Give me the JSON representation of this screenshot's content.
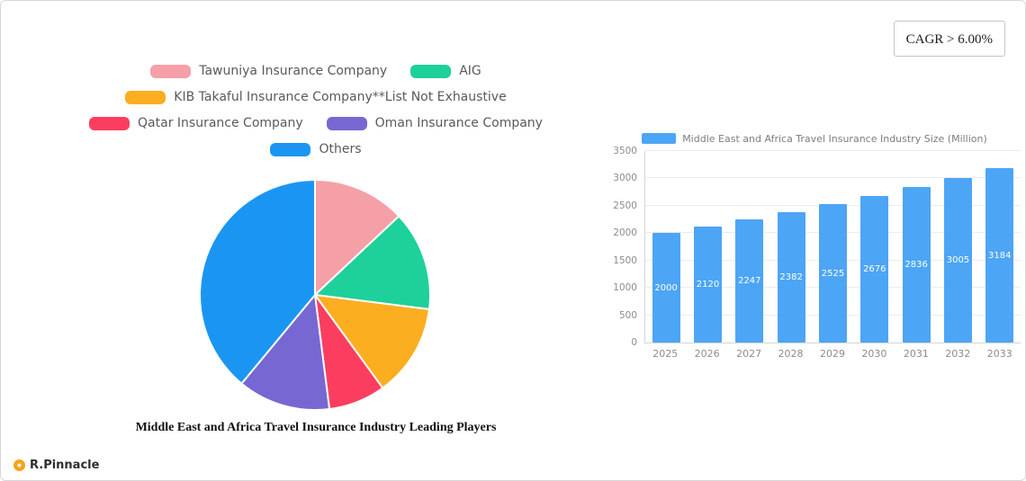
{
  "cagr_badge": "CAGR > 6.00%",
  "brand": {
    "name": "R.Pinnacle"
  },
  "chart_data": [
    {
      "type": "pie",
      "title": "Middle East and Africa Travel Insurance Industry Leading Players",
      "legend_position": "top",
      "legend_rows": [
        [
          0,
          1
        ],
        [
          2
        ],
        [
          3,
          4
        ],
        [
          5
        ]
      ],
      "slices": [
        {
          "label": "Tawuniya Insurance Company",
          "value": 13,
          "color": "#f5a0a6"
        },
        {
          "label": "AIG",
          "value": 14,
          "color": "#1ed09a"
        },
        {
          "label": "KIB Takaful Insurance Company**List Not Exhaustive",
          "value": 13,
          "color": "#fbae1f"
        },
        {
          "label": "Qatar Insurance Company",
          "value": 8,
          "color": "#fb3e60"
        },
        {
          "label": "Oman Insurance Company",
          "value": 13,
          "color": "#7767d2"
        },
        {
          "label": "Others",
          "value": 39,
          "color": "#1a96f2"
        }
      ]
    },
    {
      "type": "bar",
      "legend": "Middle East and Africa Travel Insurance Industry Size (Million)",
      "categories": [
        "2025",
        "2026",
        "2027",
        "2028",
        "2029",
        "2030",
        "2031",
        "2032",
        "2033"
      ],
      "values": [
        2000,
        2120,
        2247,
        2382,
        2525,
        2676,
        2836,
        3005,
        3184
      ],
      "bar_color": "#4da5f5",
      "ylim": [
        0,
        3500
      ],
      "yticks": [
        0,
        500,
        1000,
        1500,
        2000,
        2500,
        3000,
        3500
      ],
      "grid": true,
      "legend_position": "top"
    }
  ]
}
